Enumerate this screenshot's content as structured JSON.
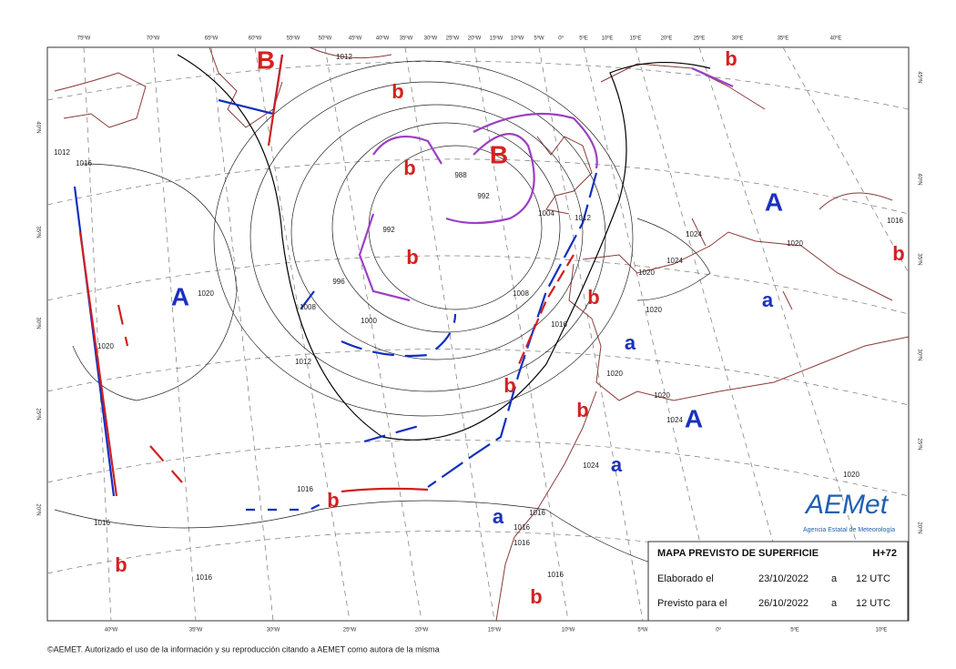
{
  "map": {
    "top_longitudes": [
      "75ºW",
      "70ºW",
      "65ºW",
      "60ºW",
      "55ºW",
      "50ºW",
      "45ºW",
      "40ºW",
      "35ºW",
      "30ºW",
      "25ºW",
      "20ºW",
      "15ºW",
      "10ºW",
      "5ºW",
      "0º",
      "5ºE",
      "10ºE",
      "15ºE",
      "20ºE",
      "25ºE",
      "30ºE",
      "35ºE",
      "40ºE"
    ],
    "bottom_longitudes": [
      "40ºW",
      "35ºW",
      "30ºW",
      "25ºW",
      "20ºW",
      "15ºW",
      "10ºW",
      "5ºW",
      "0º",
      "5ºE",
      "10ºE"
    ],
    "left_latitudes": [
      "40ºN",
      "35ºN",
      "30ºN",
      "25ºN",
      "20ºN"
    ],
    "right_latitudes": [
      "45ºN",
      "40ºN",
      "35ºN",
      "30ºN",
      "25ºN",
      "20ºN"
    ],
    "centers": [
      "B",
      "b",
      "B",
      "b",
      "b",
      "A",
      "b",
      "a",
      "a",
      "A",
      "b",
      "b",
      "A",
      "a",
      "b",
      "a",
      "b",
      "b",
      "b",
      "b"
    ],
    "isobar_labels": [
      "1012",
      "1012",
      "1016",
      "1008",
      "1000",
      "1012",
      "992",
      "988",
      "992",
      "996",
      "1004",
      "1012",
      "1008",
      "1016",
      "1020",
      "1020",
      "1024",
      "1024",
      "1020",
      "1020",
      "1020",
      "1020",
      "1024",
      "1024",
      "1016",
      "1016",
      "1016",
      "1016",
      "1016",
      "1016",
      "1016",
      "1020",
      "1016",
      "1020"
    ],
    "info_box": {
      "title": "MAPA PREVISTO DE SUPERFICIE",
      "lead": "H+72",
      "issued_label": "Elaborado el",
      "issued_date": "23/10/2022",
      "issued_at": "a",
      "issued_time": "12 UTC",
      "valid_label": "Previsto para el",
      "valid_date": "26/10/2022",
      "valid_at": "a",
      "valid_time": "12 UTC"
    },
    "logo": {
      "name": "AEMet",
      "agency": "Agencia Estatal de Meteorología"
    },
    "copyright": "©AEMET. Autorizado el uso de la información y su reproducción citando a AEMET como autora de la misma"
  }
}
